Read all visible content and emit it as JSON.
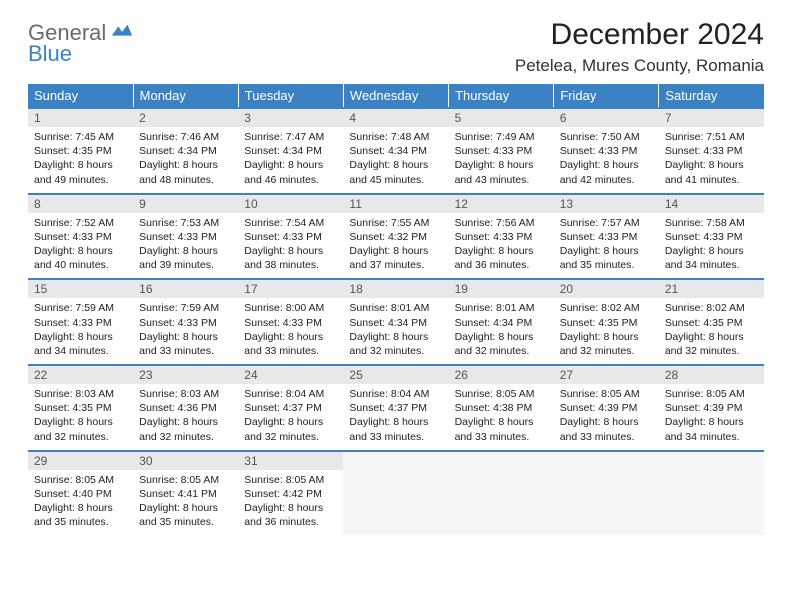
{
  "brand": {
    "general": "General",
    "blue": "Blue"
  },
  "title": "December 2024",
  "location": "Petelea, Mures County, Romania",
  "weekdays": [
    "Sunday",
    "Monday",
    "Tuesday",
    "Wednesday",
    "Thursday",
    "Friday",
    "Saturday"
  ],
  "colors": {
    "header_bg": "#3b82c4",
    "header_text": "#ffffff",
    "daynum_bg": "#e8e8e8",
    "border": "#3b82c4",
    "logo_gray": "#6b6b6b",
    "logo_blue": "#3b82c4"
  },
  "days": [
    {
      "n": "1",
      "sr": "7:45 AM",
      "ss": "4:35 PM",
      "dl": "8 hours and 49 minutes."
    },
    {
      "n": "2",
      "sr": "7:46 AM",
      "ss": "4:34 PM",
      "dl": "8 hours and 48 minutes."
    },
    {
      "n": "3",
      "sr": "7:47 AM",
      "ss": "4:34 PM",
      "dl": "8 hours and 46 minutes."
    },
    {
      "n": "4",
      "sr": "7:48 AM",
      "ss": "4:34 PM",
      "dl": "8 hours and 45 minutes."
    },
    {
      "n": "5",
      "sr": "7:49 AM",
      "ss": "4:33 PM",
      "dl": "8 hours and 43 minutes."
    },
    {
      "n": "6",
      "sr": "7:50 AM",
      "ss": "4:33 PM",
      "dl": "8 hours and 42 minutes."
    },
    {
      "n": "7",
      "sr": "7:51 AM",
      "ss": "4:33 PM",
      "dl": "8 hours and 41 minutes."
    },
    {
      "n": "8",
      "sr": "7:52 AM",
      "ss": "4:33 PM",
      "dl": "8 hours and 40 minutes."
    },
    {
      "n": "9",
      "sr": "7:53 AM",
      "ss": "4:33 PM",
      "dl": "8 hours and 39 minutes."
    },
    {
      "n": "10",
      "sr": "7:54 AM",
      "ss": "4:33 PM",
      "dl": "8 hours and 38 minutes."
    },
    {
      "n": "11",
      "sr": "7:55 AM",
      "ss": "4:32 PM",
      "dl": "8 hours and 37 minutes."
    },
    {
      "n": "12",
      "sr": "7:56 AM",
      "ss": "4:33 PM",
      "dl": "8 hours and 36 minutes."
    },
    {
      "n": "13",
      "sr": "7:57 AM",
      "ss": "4:33 PM",
      "dl": "8 hours and 35 minutes."
    },
    {
      "n": "14",
      "sr": "7:58 AM",
      "ss": "4:33 PM",
      "dl": "8 hours and 34 minutes."
    },
    {
      "n": "15",
      "sr": "7:59 AM",
      "ss": "4:33 PM",
      "dl": "8 hours and 34 minutes."
    },
    {
      "n": "16",
      "sr": "7:59 AM",
      "ss": "4:33 PM",
      "dl": "8 hours and 33 minutes."
    },
    {
      "n": "17",
      "sr": "8:00 AM",
      "ss": "4:33 PM",
      "dl": "8 hours and 33 minutes."
    },
    {
      "n": "18",
      "sr": "8:01 AM",
      "ss": "4:34 PM",
      "dl": "8 hours and 32 minutes."
    },
    {
      "n": "19",
      "sr": "8:01 AM",
      "ss": "4:34 PM",
      "dl": "8 hours and 32 minutes."
    },
    {
      "n": "20",
      "sr": "8:02 AM",
      "ss": "4:35 PM",
      "dl": "8 hours and 32 minutes."
    },
    {
      "n": "21",
      "sr": "8:02 AM",
      "ss": "4:35 PM",
      "dl": "8 hours and 32 minutes."
    },
    {
      "n": "22",
      "sr": "8:03 AM",
      "ss": "4:35 PM",
      "dl": "8 hours and 32 minutes."
    },
    {
      "n": "23",
      "sr": "8:03 AM",
      "ss": "4:36 PM",
      "dl": "8 hours and 32 minutes."
    },
    {
      "n": "24",
      "sr": "8:04 AM",
      "ss": "4:37 PM",
      "dl": "8 hours and 32 minutes."
    },
    {
      "n": "25",
      "sr": "8:04 AM",
      "ss": "4:37 PM",
      "dl": "8 hours and 33 minutes."
    },
    {
      "n": "26",
      "sr": "8:05 AM",
      "ss": "4:38 PM",
      "dl": "8 hours and 33 minutes."
    },
    {
      "n": "27",
      "sr": "8:05 AM",
      "ss": "4:39 PM",
      "dl": "8 hours and 33 minutes."
    },
    {
      "n": "28",
      "sr": "8:05 AM",
      "ss": "4:39 PM",
      "dl": "8 hours and 34 minutes."
    },
    {
      "n": "29",
      "sr": "8:05 AM",
      "ss": "4:40 PM",
      "dl": "8 hours and 35 minutes."
    },
    {
      "n": "30",
      "sr": "8:05 AM",
      "ss": "4:41 PM",
      "dl": "8 hours and 35 minutes."
    },
    {
      "n": "31",
      "sr": "8:05 AM",
      "ss": "4:42 PM",
      "dl": "8 hours and 36 minutes."
    }
  ],
  "labels": {
    "sunrise": "Sunrise:",
    "sunset": "Sunset:",
    "daylight": "Daylight:"
  },
  "layout": {
    "start_weekday": 0,
    "cols": 7,
    "rows": 5
  }
}
